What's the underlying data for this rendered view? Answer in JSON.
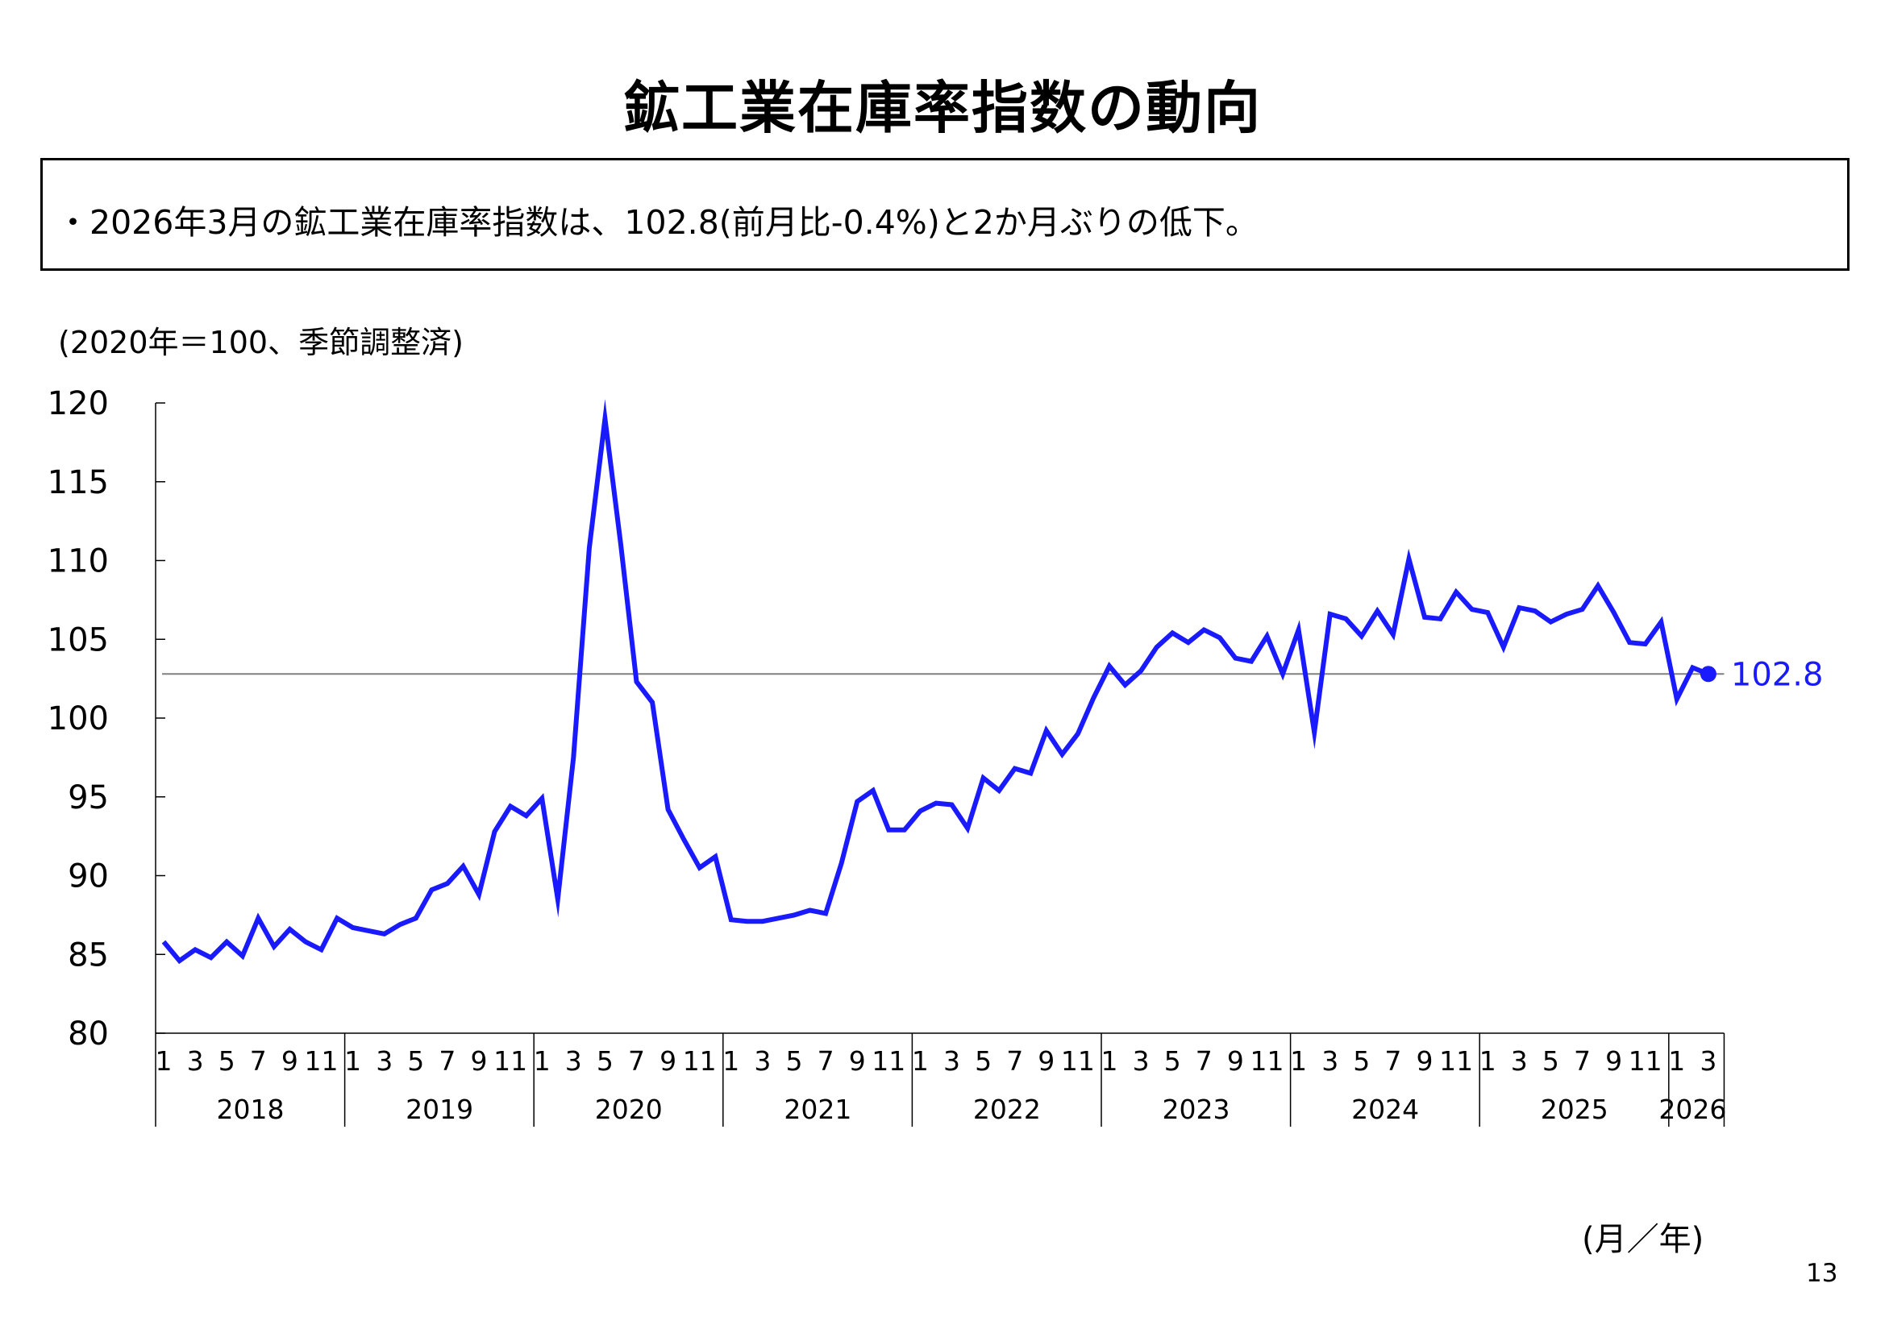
{
  "title": "鉱工業在庫率指数の動向",
  "summary": "・2026年3月の鉱工業在庫率指数は、102.8(前月比-0.4%)と2か月ぶりの低下。",
  "unit_note": "(2020年＝100、季節調整済)",
  "axis_note": "(月／年)",
  "page_number": "13",
  "colors": {
    "series": "#1a1aff",
    "reference_line": "#808080",
    "axis": "#000000"
  },
  "chart_data": {
    "type": "line",
    "title": "",
    "xlabel": "(月／年)",
    "ylabel": "(2020年＝100、季節調整済)",
    "ylim": [
      80,
      120
    ],
    "yticks": [
      80,
      85,
      90,
      95,
      100,
      105,
      110,
      115,
      120
    ],
    "grid": false,
    "month_tick_labels": [
      "1",
      "3",
      "5",
      "7",
      "9",
      "11"
    ],
    "years": [
      {
        "label": "2018",
        "months": 12
      },
      {
        "label": "2019",
        "months": 12
      },
      {
        "label": "2020",
        "months": 12
      },
      {
        "label": "2021",
        "months": 12
      },
      {
        "label": "2022",
        "months": 12
      },
      {
        "label": "2023",
        "months": 12
      },
      {
        "label": "2024",
        "months": 12
      },
      {
        "label": "2025",
        "months": 12
      },
      {
        "label": "2026",
        "months": 3
      }
    ],
    "series": [
      {
        "values": [
          85.8,
          84.6,
          85.3,
          84.8,
          85.8,
          84.9,
          87.3,
          85.5,
          86.6,
          85.8,
          85.3,
          87.3,
          86.7,
          86.5,
          86.3,
          86.9,
          87.3,
          89.1,
          89.5,
          90.6,
          88.8,
          92.8,
          94.4,
          93.8,
          94.9,
          88.5,
          97.5,
          110.8,
          119.0,
          111.0,
          102.3,
          101.0,
          94.2,
          92.3,
          90.5,
          91.2,
          87.2,
          87.1,
          87.1,
          87.3,
          87.5,
          87.8,
          87.6,
          90.8,
          94.7,
          95.4,
          92.9,
          92.9,
          94.1,
          94.6,
          94.5,
          93.0,
          96.2,
          95.4,
          96.8,
          96.5,
          99.2,
          97.7,
          99.0,
          101.3,
          103.3,
          102.1,
          103.0,
          104.5,
          105.4,
          104.8,
          105.6,
          105.1,
          103.8,
          103.6,
          105.2,
          102.8,
          105.6,
          99.1,
          106.6,
          106.3,
          105.2,
          106.8,
          105.3,
          110.1,
          106.4,
          106.3,
          108.0,
          106.9,
          106.7,
          104.5,
          107.0,
          106.8,
          106.1,
          106.6,
          106.9,
          108.4,
          106.7,
          104.8,
          104.7,
          106.1,
          101.2,
          103.2,
          102.8
        ]
      }
    ],
    "reference_value": 102.8,
    "last_value_label": "102.8"
  }
}
